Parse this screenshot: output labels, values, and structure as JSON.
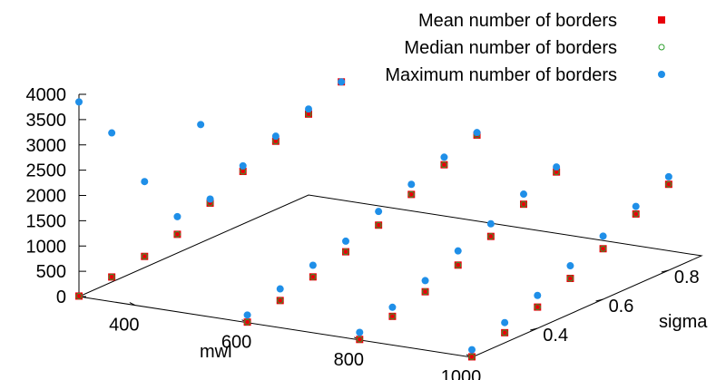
{
  "chart_data": {
    "type": "scatter",
    "title": "",
    "xlabel": "mwl",
    "ylabel": "sigma",
    "zlabel": "",
    "xlim": [
      300,
      1000
    ],
    "ylim": [
      0.2,
      0.9
    ],
    "zlim": [
      0,
      4000
    ],
    "x_ticks": [
      "400",
      "600",
      "800",
      "1000"
    ],
    "y_ticks": [
      "0.4",
      "0.6",
      "0.8"
    ],
    "z_ticks": [
      "0",
      "500",
      "1000",
      "1500",
      "2000",
      "2500",
      "3000",
      "3500",
      "4000"
    ],
    "legend_position": "top-right",
    "series": [
      {
        "name": "Mean number of borders",
        "color": "#e8000b",
        "marker": "square",
        "points": [
          {
            "x": 300,
            "y": 0.2,
            "z": 10
          },
          {
            "x": 300,
            "y": 0.3,
            "z": 100
          },
          {
            "x": 300,
            "y": 0.4,
            "z": 220
          },
          {
            "x": 300,
            "y": 0.5,
            "z": 370
          },
          {
            "x": 300,
            "y": 0.6,
            "z": 700
          },
          {
            "x": 300,
            "y": 0.7,
            "z": 1040
          },
          {
            "x": 300,
            "y": 0.8,
            "z": 1350
          },
          {
            "x": 300,
            "y": 0.9,
            "z": 1600
          },
          {
            "x": 300,
            "y": 1.0,
            "z": 1950
          },
          {
            "x": 600,
            "y": 0.2,
            "z": 10
          },
          {
            "x": 600,
            "y": 0.3,
            "z": 150
          },
          {
            "x": 600,
            "y": 0.4,
            "z": 330
          },
          {
            "x": 600,
            "y": 0.5,
            "z": 540
          },
          {
            "x": 600,
            "y": 0.6,
            "z": 780
          },
          {
            "x": 600,
            "y": 0.7,
            "z": 1100
          },
          {
            "x": 600,
            "y": 0.8,
            "z": 1400
          },
          {
            "x": 600,
            "y": 0.9,
            "z": 1700
          },
          {
            "x": 800,
            "y": 0.2,
            "z": 10
          },
          {
            "x": 800,
            "y": 0.3,
            "z": 180
          },
          {
            "x": 800,
            "y": 0.4,
            "z": 380
          },
          {
            "x": 800,
            "y": 0.5,
            "z": 620
          },
          {
            "x": 800,
            "y": 0.6,
            "z": 900
          },
          {
            "x": 800,
            "y": 0.7,
            "z": 1250
          },
          {
            "x": 800,
            "y": 0.8,
            "z": 1600
          },
          {
            "x": 1000,
            "y": 0.2,
            "z": 10
          },
          {
            "x": 1000,
            "y": 0.3,
            "z": 200
          },
          {
            "x": 1000,
            "y": 0.4,
            "z": 420
          },
          {
            "x": 1000,
            "y": 0.5,
            "z": 700
          },
          {
            "x": 1000,
            "y": 0.6,
            "z": 1000
          },
          {
            "x": 1000,
            "y": 0.7,
            "z": 1400
          },
          {
            "x": 1000,
            "y": 0.8,
            "z": 1700
          }
        ]
      },
      {
        "name": "Median number of borders",
        "color": "#2ca02c",
        "marker": "circle-open",
        "points": [
          {
            "x": 300,
            "y": 0.2,
            "z": 10
          },
          {
            "x": 300,
            "y": 0.3,
            "z": 100
          },
          {
            "x": 300,
            "y": 0.4,
            "z": 220
          },
          {
            "x": 300,
            "y": 0.5,
            "z": 370
          },
          {
            "x": 300,
            "y": 0.6,
            "z": 700
          },
          {
            "x": 300,
            "y": 0.7,
            "z": 1040
          },
          {
            "x": 300,
            "y": 0.8,
            "z": 1350
          },
          {
            "x": 300,
            "y": 0.9,
            "z": 1600
          },
          {
            "x": 300,
            "y": 1.0,
            "z": 1950
          },
          {
            "x": 600,
            "y": 0.2,
            "z": 10
          },
          {
            "x": 600,
            "y": 0.3,
            "z": 150
          },
          {
            "x": 600,
            "y": 0.4,
            "z": 330
          },
          {
            "x": 600,
            "y": 0.5,
            "z": 540
          },
          {
            "x": 600,
            "y": 0.6,
            "z": 780
          },
          {
            "x": 600,
            "y": 0.7,
            "z": 1100
          },
          {
            "x": 600,
            "y": 0.8,
            "z": 1400
          },
          {
            "x": 600,
            "y": 0.9,
            "z": 1700
          },
          {
            "x": 800,
            "y": 0.2,
            "z": 10
          },
          {
            "x": 800,
            "y": 0.3,
            "z": 180
          },
          {
            "x": 800,
            "y": 0.4,
            "z": 380
          },
          {
            "x": 800,
            "y": 0.5,
            "z": 620
          },
          {
            "x": 800,
            "y": 0.6,
            "z": 900
          },
          {
            "x": 800,
            "y": 0.7,
            "z": 1250
          },
          {
            "x": 800,
            "y": 0.8,
            "z": 1600
          },
          {
            "x": 1000,
            "y": 0.2,
            "z": 10
          },
          {
            "x": 1000,
            "y": 0.3,
            "z": 200
          },
          {
            "x": 1000,
            "y": 0.4,
            "z": 420
          },
          {
            "x": 1000,
            "y": 0.5,
            "z": 700
          },
          {
            "x": 1000,
            "y": 0.6,
            "z": 1000
          },
          {
            "x": 1000,
            "y": 0.7,
            "z": 1400
          },
          {
            "x": 1000,
            "y": 0.8,
            "z": 1700
          }
        ]
      },
      {
        "name": "Maximum number of borders",
        "color": "#1f8fe8",
        "marker": "circle",
        "points": [
          {
            "x": 300,
            "y": 0.2,
            "z": 3850
          },
          {
            "x": 300,
            "y": 0.3,
            "z": 2950
          },
          {
            "x": 300,
            "y": 0.4,
            "z": 1700
          },
          {
            "x": 300,
            "y": 0.5,
            "z": 720
          },
          {
            "x": 300,
            "y": 0.6,
            "z": 780
          },
          {
            "x": 300,
            "y": 0.7,
            "z": 1150
          },
          {
            "x": 300,
            "y": 0.8,
            "z": 1450
          },
          {
            "x": 300,
            "y": 0.9,
            "z": 1700
          },
          {
            "x": 300,
            "y": 1.0,
            "z": 1950
          },
          {
            "x": 400,
            "y": 0.4,
            "z": 3000
          },
          {
            "x": 600,
            "y": 0.2,
            "z": 150
          },
          {
            "x": 600,
            "y": 0.3,
            "z": 380
          },
          {
            "x": 600,
            "y": 0.4,
            "z": 560
          },
          {
            "x": 600,
            "y": 0.5,
            "z": 750
          },
          {
            "x": 600,
            "y": 0.6,
            "z": 1050
          },
          {
            "x": 600,
            "y": 0.7,
            "z": 1300
          },
          {
            "x": 600,
            "y": 0.8,
            "z": 1550
          },
          {
            "x": 600,
            "y": 0.9,
            "z": 1750
          },
          {
            "x": 800,
            "y": 0.2,
            "z": 150
          },
          {
            "x": 800,
            "y": 0.3,
            "z": 360
          },
          {
            "x": 800,
            "y": 0.4,
            "z": 600
          },
          {
            "x": 800,
            "y": 0.5,
            "z": 900
          },
          {
            "x": 800,
            "y": 0.6,
            "z": 1150
          },
          {
            "x": 800,
            "y": 0.7,
            "z": 1450
          },
          {
            "x": 800,
            "y": 0.8,
            "z": 1700
          },
          {
            "x": 1000,
            "y": 0.2,
            "z": 150
          },
          {
            "x": 1000,
            "y": 0.3,
            "z": 400
          },
          {
            "x": 1000,
            "y": 0.4,
            "z": 650
          },
          {
            "x": 1000,
            "y": 0.5,
            "z": 950
          },
          {
            "x": 1000,
            "y": 0.6,
            "z": 1250
          },
          {
            "x": 1000,
            "y": 0.7,
            "z": 1550
          },
          {
            "x": 1000,
            "y": 0.8,
            "z": 1850
          }
        ]
      }
    ]
  }
}
